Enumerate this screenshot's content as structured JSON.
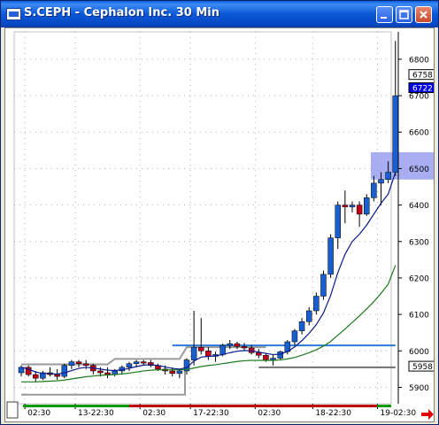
{
  "window": {
    "title": "S.CEPH - Cephalon Inc. 30 Min"
  },
  "controls": {
    "minimize": "minimize",
    "maximize": "maximize",
    "close": "close"
  },
  "price_markers": [
    {
      "label": "6758",
      "price": 6758,
      "style": "box"
    },
    {
      "label": "6722",
      "price": 6722,
      "style": "blue"
    },
    {
      "label": "5958",
      "price": 5958,
      "style": "box"
    }
  ],
  "colors": {
    "up": "#1a5fd0",
    "down": "#c0001a",
    "ma_fast": "#0a1a8a",
    "ma_slow": "#1b7a1b",
    "grey_line": "#9a9a9a",
    "blue_line": "#2a7ad8",
    "highlight": "#9aa0f0"
  },
  "chart_data": {
    "type": "candlestick",
    "title": "",
    "y_ticks": [
      5900,
      6000,
      6100,
      6200,
      6300,
      6400,
      6500,
      6600,
      6700,
      6800
    ],
    "ylim": [
      5855,
      6875
    ],
    "x_tick_labels": [
      "02:30",
      "13-22:30",
      "02:30",
      "17-22:30",
      "02:30",
      "18-22:30",
      "19-02:30"
    ],
    "grid": true,
    "candles": [
      [
        5940,
        5960,
        5930,
        5955
      ],
      [
        5955,
        5960,
        5930,
        5935
      ],
      [
        5935,
        5945,
        5915,
        5925
      ],
      [
        5925,
        5945,
        5920,
        5940
      ],
      [
        5940,
        5955,
        5930,
        5935
      ],
      [
        5935,
        5950,
        5920,
        5930
      ],
      [
        5930,
        5965,
        5925,
        5960
      ],
      [
        5960,
        5975,
        5950,
        5970
      ],
      [
        5970,
        5975,
        5955,
        5965
      ],
      [
        5965,
        5975,
        5950,
        5960
      ],
      [
        5960,
        5965,
        5935,
        5945
      ],
      [
        5945,
        5955,
        5930,
        5940
      ],
      [
        5940,
        5955,
        5925,
        5935
      ],
      [
        5935,
        5950,
        5930,
        5945
      ],
      [
        5945,
        5960,
        5935,
        5955
      ],
      [
        5955,
        5970,
        5945,
        5965
      ],
      [
        5965,
        5975,
        5955,
        5970
      ],
      [
        5970,
        5975,
        5960,
        5968
      ],
      [
        5968,
        5975,
        5955,
        5960
      ],
      [
        5960,
        5965,
        5945,
        5950
      ],
      [
        5950,
        5960,
        5935,
        5945
      ],
      [
        5945,
        5955,
        5930,
        5938
      ],
      [
        5938,
        5950,
        5925,
        5945
      ],
      [
        5945,
        5980,
        5935,
        5975
      ],
      [
        5975,
        6110,
        5960,
        6010
      ],
      [
        6010,
        6090,
        5990,
        6000
      ],
      [
        6000,
        6010,
        5975,
        5985
      ],
      [
        5985,
        5998,
        5970,
        5990
      ],
      [
        5990,
        6020,
        5985,
        6015
      ],
      [
        6015,
        6030,
        6005,
        6020
      ],
      [
        6020,
        6025,
        6005,
        6012
      ],
      [
        6012,
        6022,
        6000,
        6008
      ],
      [
        6008,
        6015,
        5990,
        5995
      ],
      [
        5995,
        6005,
        5980,
        5988
      ],
      [
        5988,
        5995,
        5970,
        5975
      ],
      [
        5975,
        5990,
        5960,
        5980
      ],
      [
        5980,
        6000,
        5975,
        5998
      ],
      [
        5998,
        6030,
        5990,
        6025
      ],
      [
        6025,
        6060,
        6015,
        6055
      ],
      [
        6055,
        6090,
        6045,
        6080
      ],
      [
        6080,
        6120,
        6070,
        6110
      ],
      [
        6110,
        6160,
        6100,
        6150
      ],
      [
        6150,
        6220,
        6140,
        6210
      ],
      [
        6210,
        6320,
        6200,
        6310
      ],
      [
        6310,
        6410,
        6280,
        6400
      ],
      [
        6400,
        6440,
        6350,
        6395
      ],
      [
        6395,
        6410,
        6380,
        6400
      ],
      [
        6400,
        6410,
        6340,
        6375
      ],
      [
        6375,
        6430,
        6370,
        6420
      ],
      [
        6420,
        6480,
        6410,
        6460
      ],
      [
        6460,
        6490,
        6400,
        6470
      ],
      [
        6470,
        6520,
        6460,
        6490
      ],
      [
        6490,
        6850,
        6480,
        6700
      ]
    ],
    "ma_fast": [
      5955,
      5950,
      5942,
      5938,
      5938,
      5936,
      5940,
      5946,
      5952,
      5955,
      5953,
      5950,
      5947,
      5946,
      5948,
      5952,
      5957,
      5961,
      5962,
      5960,
      5956,
      5952,
      5950,
      5954,
      5972,
      5983,
      5985,
      5986,
      5990,
      5995,
      5999,
      6001,
      6000,
      5997,
      5993,
      5990,
      5991,
      5998,
      6011,
      6028,
      6048,
      6072,
      6104,
      6152,
      6215,
      6265,
      6300,
      6320,
      6345,
      6375,
      6405,
      6430,
      6490
    ],
    "ma_slow": [
      5915,
      5915,
      5915,
      5916,
      5917,
      5918,
      5920,
      5923,
      5926,
      5929,
      5931,
      5933,
      5934,
      5935,
      5937,
      5939,
      5942,
      5945,
      5947,
      5948,
      5948,
      5948,
      5948,
      5949,
      5953,
      5957,
      5960,
      5962,
      5965,
      5968,
      5971,
      5973,
      5974,
      5974,
      5974,
      5974,
      5975,
      5978,
      5982,
      5988,
      5995,
      6003,
      6013,
      6026,
      6043,
      6060,
      6078,
      6096,
      6115,
      6135,
      6158,
      6183,
      6235
    ],
    "grey_line": [
      [
        0,
        5963
      ],
      [
        12,
        5963
      ],
      [
        13,
        5978
      ],
      [
        22,
        5978
      ],
      [
        23,
        6010
      ],
      [
        34,
        6010
      ]
    ],
    "grey_bottom": [
      [
        0,
        5880
      ],
      [
        23,
        5880
      ]
    ],
    "blue_level": [
      [
        21,
        6015
      ],
      [
        52,
        6015
      ]
    ],
    "grey_level": [
      [
        33,
        5955
      ],
      [
        52,
        5955
      ]
    ],
    "highlight_band": [
      6470,
      6545
    ]
  }
}
